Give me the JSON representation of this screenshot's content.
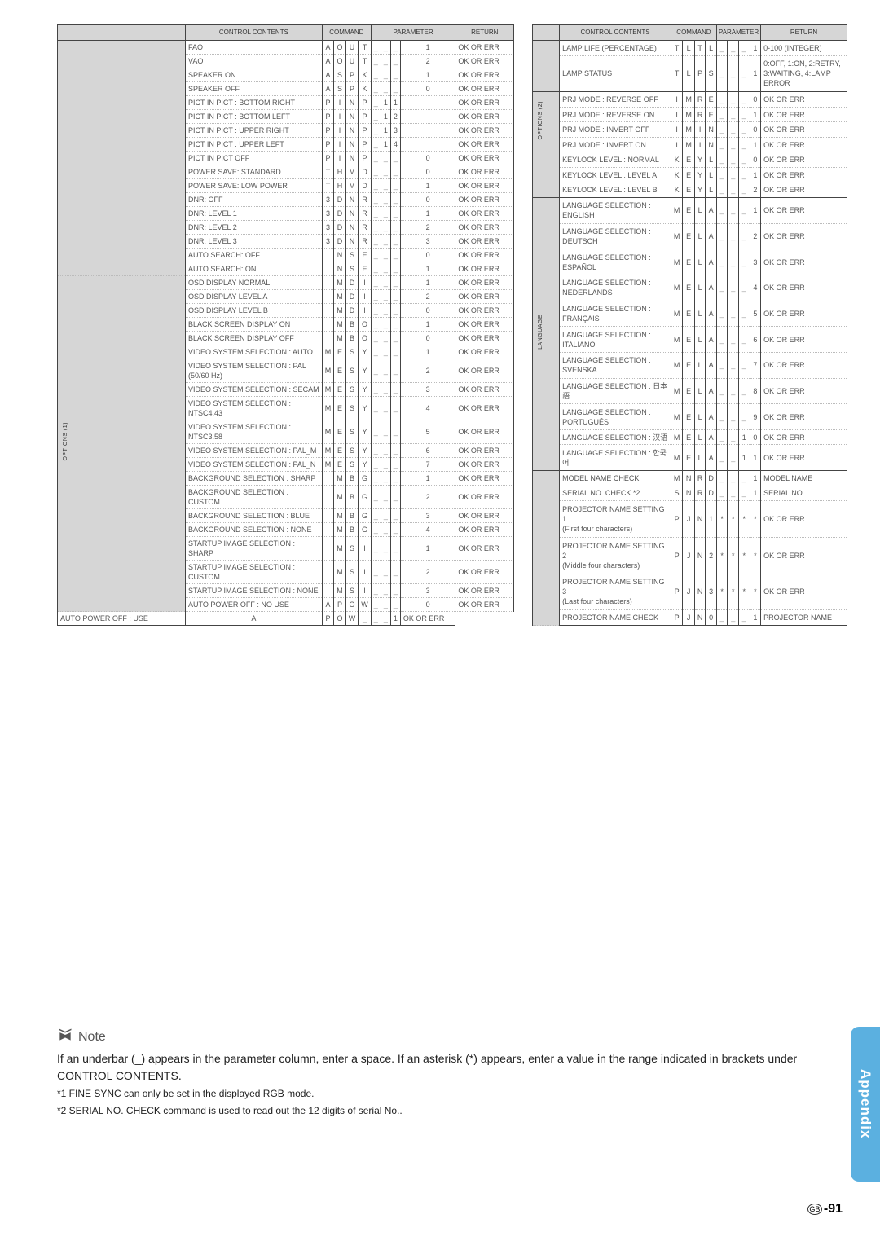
{
  "headers": {
    "control": "CONTROL CONTENTS",
    "command": "COMMAND",
    "parameter": "PARAMETER",
    "return": "RETURN"
  },
  "sidelabels": {
    "options1": "OPTIONS (1)",
    "options2": "OPTIONS (2)",
    "language": "LANGUAGE"
  },
  "left_rows": [
    {
      "n": "FAO",
      "c": [
        "A",
        "O",
        "U",
        "T"
      ],
      "p": [
        "_",
        "_",
        "_",
        "1"
      ],
      "r": "OK OR ERR",
      "section": true
    },
    {
      "n": "VAO",
      "c": [
        "A",
        "O",
        "U",
        "T"
      ],
      "p": [
        "_",
        "_",
        "_",
        "2"
      ],
      "r": "OK OR ERR"
    },
    {
      "n": "SPEAKER ON",
      "c": [
        "A",
        "S",
        "P",
        "K"
      ],
      "p": [
        "_",
        "_",
        "_",
        "1"
      ],
      "r": "OK OR ERR"
    },
    {
      "n": "SPEAKER OFF",
      "c": [
        "A",
        "S",
        "P",
        "K"
      ],
      "p": [
        "_",
        "_",
        "_",
        "0"
      ],
      "r": "OK OR ERR"
    },
    {
      "n": "PICT IN PICT : BOTTOM RIGHT",
      "c": [
        "P",
        "I",
        "N",
        "P"
      ],
      "p": [
        "_",
        "1",
        "1",
        " "
      ],
      "r": "OK OR ERR"
    },
    {
      "n": "PICT IN PICT : BOTTOM LEFT",
      "c": [
        "P",
        "I",
        "N",
        "P"
      ],
      "p": [
        "_",
        "1",
        "2",
        " "
      ],
      "r": "OK OR ERR"
    },
    {
      "n": "PICT IN PICT : UPPER RIGHT",
      "c": [
        "P",
        "I",
        "N",
        "P"
      ],
      "p": [
        "_",
        "1",
        "3",
        " "
      ],
      "r": "OK OR ERR"
    },
    {
      "n": "PICT IN PICT : UPPER LEFT",
      "c": [
        "P",
        "I",
        "N",
        "P"
      ],
      "p": [
        "_",
        "1",
        "4",
        " "
      ],
      "r": "OK OR ERR"
    },
    {
      "n": "PICT IN PICT OFF",
      "c": [
        "P",
        "I",
        "N",
        "P"
      ],
      "p": [
        "_",
        "_",
        "_",
        "0"
      ],
      "r": "OK OR ERR"
    },
    {
      "n": "POWER SAVE: STANDARD",
      "c": [
        "T",
        "H",
        "M",
        "D"
      ],
      "p": [
        "_",
        "_",
        "_",
        "0"
      ],
      "r": "OK OR ERR"
    },
    {
      "n": "POWER SAVE: LOW POWER",
      "c": [
        "T",
        "H",
        "M",
        "D"
      ],
      "p": [
        "_",
        "_",
        "_",
        "1"
      ],
      "r": "OK OR ERR"
    },
    {
      "n": "DNR: OFF",
      "c": [
        "3",
        "D",
        "N",
        "R"
      ],
      "p": [
        "_",
        "_",
        "_",
        "0"
      ],
      "r": "OK OR ERR"
    },
    {
      "n": "DNR: LEVEL 1",
      "c": [
        "3",
        "D",
        "N",
        "R"
      ],
      "p": [
        "_",
        "_",
        "_",
        "1"
      ],
      "r": "OK OR ERR"
    },
    {
      "n": "DNR: LEVEL 2",
      "c": [
        "3",
        "D",
        "N",
        "R"
      ],
      "p": [
        "_",
        "_",
        "_",
        "2"
      ],
      "r": "OK OR ERR"
    },
    {
      "n": "DNR: LEVEL 3",
      "c": [
        "3",
        "D",
        "N",
        "R"
      ],
      "p": [
        "_",
        "_",
        "_",
        "3"
      ],
      "r": "OK OR ERR"
    },
    {
      "n": "AUTO SEARCH: OFF",
      "c": [
        "I",
        "N",
        "S",
        "E"
      ],
      "p": [
        "_",
        "_",
        "_",
        "0"
      ],
      "r": "OK OR ERR"
    },
    {
      "n": "AUTO SEARCH: ON",
      "c": [
        "I",
        "N",
        "S",
        "E"
      ],
      "p": [
        "_",
        "_",
        "_",
        "1"
      ],
      "r": "OK OR ERR"
    },
    {
      "n": "OSD DISPLAY NORMAL",
      "c": [
        "I",
        "M",
        "D",
        "I"
      ],
      "p": [
        "_",
        "_",
        "_",
        "1"
      ],
      "r": "OK OR ERR",
      "side": "options1",
      "span": 20
    },
    {
      "n": "OSD DISPLAY LEVEL A",
      "c": [
        "I",
        "M",
        "D",
        "I"
      ],
      "p": [
        "_",
        "_",
        "_",
        "2"
      ],
      "r": "OK OR ERR"
    },
    {
      "n": "OSD DISPLAY LEVEL B",
      "c": [
        "I",
        "M",
        "D",
        "I"
      ],
      "p": [
        "_",
        "_",
        "_",
        "0"
      ],
      "r": "OK OR ERR"
    },
    {
      "n": "BLACK SCREEN DISPLAY ON",
      "c": [
        "I",
        "M",
        "B",
        "O"
      ],
      "p": [
        "_",
        "_",
        "_",
        "1"
      ],
      "r": "OK OR ERR"
    },
    {
      "n": "BLACK SCREEN DISPLAY OFF",
      "c": [
        "I",
        "M",
        "B",
        "O"
      ],
      "p": [
        "_",
        "_",
        "_",
        "0"
      ],
      "r": "OK OR ERR"
    },
    {
      "n": "VIDEO SYSTEM SELECTION : AUTO",
      "c": [
        "M",
        "E",
        "S",
        "Y"
      ],
      "p": [
        "_",
        "_",
        "_",
        "1"
      ],
      "r": "OK OR ERR"
    },
    {
      "n": "VIDEO SYSTEM SELECTION : PAL (50/60 Hz)",
      "c": [
        "M",
        "E",
        "S",
        "Y"
      ],
      "p": [
        "_",
        "_",
        "_",
        "2"
      ],
      "r": "OK OR ERR"
    },
    {
      "n": "VIDEO SYSTEM SELECTION : SECAM",
      "c": [
        "M",
        "E",
        "S",
        "Y"
      ],
      "p": [
        "_",
        "_",
        "_",
        "3"
      ],
      "r": "OK OR ERR"
    },
    {
      "n": "VIDEO SYSTEM SELECTION : NTSC4.43",
      "c": [
        "M",
        "E",
        "S",
        "Y"
      ],
      "p": [
        "_",
        "_",
        "_",
        "4"
      ],
      "r": "OK OR ERR"
    },
    {
      "n": "VIDEO SYSTEM SELECTION : NTSC3.58",
      "c": [
        "M",
        "E",
        "S",
        "Y"
      ],
      "p": [
        "_",
        "_",
        "_",
        "5"
      ],
      "r": "OK OR ERR"
    },
    {
      "n": "VIDEO SYSTEM SELECTION : PAL_M",
      "c": [
        "M",
        "E",
        "S",
        "Y"
      ],
      "p": [
        "_",
        "_",
        "_",
        "6"
      ],
      "r": "OK OR ERR"
    },
    {
      "n": "VIDEO SYSTEM SELECTION : PAL_N",
      "c": [
        "M",
        "E",
        "S",
        "Y"
      ],
      "p": [
        "_",
        "_",
        "_",
        "7"
      ],
      "r": "OK OR ERR"
    },
    {
      "n": "BACKGROUND SELECTION : SHARP",
      "c": [
        "I",
        "M",
        "B",
        "G"
      ],
      "p": [
        "_",
        "_",
        "_",
        "1"
      ],
      "r": "OK OR ERR"
    },
    {
      "n": "BACKGROUND SELECTION : CUSTOM",
      "c": [
        "I",
        "M",
        "B",
        "G"
      ],
      "p": [
        "_",
        "_",
        "_",
        "2"
      ],
      "r": "OK OR ERR"
    },
    {
      "n": "BACKGROUND SELECTION : BLUE",
      "c": [
        "I",
        "M",
        "B",
        "G"
      ],
      "p": [
        "_",
        "_",
        "_",
        "3"
      ],
      "r": "OK OR ERR"
    },
    {
      "n": "BACKGROUND SELECTION : NONE",
      "c": [
        "I",
        "M",
        "B",
        "G"
      ],
      "p": [
        "_",
        "_",
        "_",
        "4"
      ],
      "r": "OK OR ERR"
    },
    {
      "n": "STARTUP IMAGE SELECTION : SHARP",
      "c": [
        "I",
        "M",
        "S",
        "I"
      ],
      "p": [
        "_",
        "_",
        "_",
        "1"
      ],
      "r": "OK OR ERR"
    },
    {
      "n": "STARTUP IMAGE SELECTION : CUSTOM",
      "c": [
        "I",
        "M",
        "S",
        "I"
      ],
      "p": [
        "_",
        "_",
        "_",
        "2"
      ],
      "r": "OK OR ERR"
    },
    {
      "n": "STARTUP IMAGE SELECTION : NONE",
      "c": [
        "I",
        "M",
        "S",
        "I"
      ],
      "p": [
        "_",
        "_",
        "_",
        "3"
      ],
      "r": "OK OR ERR"
    },
    {
      "n": "AUTO POWER OFF : NO USE",
      "c": [
        "A",
        "P",
        "O",
        "W"
      ],
      "p": [
        "_",
        "_",
        "_",
        "0"
      ],
      "r": "OK OR ERR"
    },
    {
      "n": "AUTO POWER OFF : USE",
      "c": [
        "A",
        "P",
        "O",
        "W"
      ],
      "p": [
        "_",
        "_",
        "_",
        "1"
      ],
      "r": "OK OR ERR"
    }
  ],
  "right_rows": [
    {
      "n": "LAMP LIFE (PERCENTAGE)",
      "c": [
        "T",
        "L",
        "T",
        "L"
      ],
      "p": [
        "_",
        "_",
        "_",
        "1"
      ],
      "r": "0-100 (INTEGER)",
      "section": true
    },
    {
      "n": "LAMP STATUS",
      "c": [
        "T",
        "L",
        "P",
        "S"
      ],
      "p": [
        "_",
        "_",
        "_",
        "1"
      ],
      "r": "0:OFF, 1:ON, 2:RETRY, 3:WAITING, 4:LAMP ERROR",
      "tall": true
    },
    {
      "n": "PRJ MODE : REVERSE OFF",
      "c": [
        "I",
        "M",
        "R",
        "E"
      ],
      "p": [
        "_",
        "_",
        "_",
        "0"
      ],
      "r": "OK OR ERR",
      "side": "options2",
      "span": 4,
      "section": true
    },
    {
      "n": "PRJ MODE : REVERSE ON",
      "c": [
        "I",
        "M",
        "R",
        "E"
      ],
      "p": [
        "_",
        "_",
        "_",
        "1"
      ],
      "r": "OK OR ERR"
    },
    {
      "n": "PRJ MODE : INVERT OFF",
      "c": [
        "I",
        "M",
        "I",
        "N"
      ],
      "p": [
        "_",
        "_",
        "_",
        "0"
      ],
      "r": "OK OR ERR"
    },
    {
      "n": "PRJ MODE : INVERT ON",
      "c": [
        "I",
        "M",
        "I",
        "N"
      ],
      "p": [
        "_",
        "_",
        "_",
        "1"
      ],
      "r": "OK OR ERR"
    },
    {
      "n": "KEYLOCK LEVEL : NORMAL",
      "c": [
        "K",
        "E",
        "Y",
        "L"
      ],
      "p": [
        "_",
        "_",
        "_",
        "0"
      ],
      "r": "OK OR ERR",
      "section": true
    },
    {
      "n": "KEYLOCK LEVEL : LEVEL A",
      "c": [
        "K",
        "E",
        "Y",
        "L"
      ],
      "p": [
        "_",
        "_",
        "_",
        "1"
      ],
      "r": "OK OR ERR"
    },
    {
      "n": "KEYLOCK LEVEL : LEVEL B",
      "c": [
        "K",
        "E",
        "Y",
        "L"
      ],
      "p": [
        "_",
        "_",
        "_",
        "2"
      ],
      "r": "OK OR ERR"
    },
    {
      "n": "LANGUAGE SELECTION : ENGLISH",
      "c": [
        "M",
        "E",
        "L",
        "A"
      ],
      "p": [
        "_",
        "_",
        "_",
        "1"
      ],
      "r": "OK OR ERR",
      "side": "language",
      "span": 11,
      "section": true
    },
    {
      "n": "LANGUAGE SELECTION : DEUTSCH",
      "c": [
        "M",
        "E",
        "L",
        "A"
      ],
      "p": [
        "_",
        "_",
        "_",
        "2"
      ],
      "r": "OK OR ERR"
    },
    {
      "n": "LANGUAGE SELECTION : ESPAÑOL",
      "c": [
        "M",
        "E",
        "L",
        "A"
      ],
      "p": [
        "_",
        "_",
        "_",
        "3"
      ],
      "r": "OK OR ERR"
    },
    {
      "n": "LANGUAGE SELECTION : NEDERLANDS",
      "c": [
        "M",
        "E",
        "L",
        "A"
      ],
      "p": [
        "_",
        "_",
        "_",
        "4"
      ],
      "r": "OK OR ERR"
    },
    {
      "n": "LANGUAGE SELECTION : FRANÇAIS",
      "c": [
        "M",
        "E",
        "L",
        "A"
      ],
      "p": [
        "_",
        "_",
        "_",
        "5"
      ],
      "r": "OK OR ERR"
    },
    {
      "n": "LANGUAGE SELECTION : ITALIANO",
      "c": [
        "M",
        "E",
        "L",
        "A"
      ],
      "p": [
        "_",
        "_",
        "_",
        "6"
      ],
      "r": "OK OR ERR"
    },
    {
      "n": "LANGUAGE SELECTION : SVENSKA",
      "c": [
        "M",
        "E",
        "L",
        "A"
      ],
      "p": [
        "_",
        "_",
        "_",
        "7"
      ],
      "r": "OK OR ERR"
    },
    {
      "n": "LANGUAGE SELECTION : 日本語",
      "c": [
        "M",
        "E",
        "L",
        "A"
      ],
      "p": [
        "_",
        "_",
        "_",
        "8"
      ],
      "r": "OK OR ERR"
    },
    {
      "n": "LANGUAGE SELECTION : PORTUGUÊS",
      "c": [
        "M",
        "E",
        "L",
        "A"
      ],
      "p": [
        "_",
        "_",
        "_",
        "9"
      ],
      "r": "OK OR ERR"
    },
    {
      "n": "LANGUAGE SELECTION : 汉语",
      "c": [
        "M",
        "E",
        "L",
        "A"
      ],
      "p": [
        "_",
        "_",
        "1",
        "0"
      ],
      "r": "OK OR ERR"
    },
    {
      "n": "LANGUAGE SELECTION : 한국어",
      "c": [
        "M",
        "E",
        "L",
        "A"
      ],
      "p": [
        "_",
        "_",
        "1",
        "1"
      ],
      "r": "OK OR ERR"
    },
    {
      "n": "MODEL NAME CHECK",
      "c": [
        "M",
        "N",
        "R",
        "D"
      ],
      "p": [
        "_",
        "_",
        "_",
        "1"
      ],
      "r": "MODEL NAME",
      "section": true
    },
    {
      "n": "SERIAL NO. CHECK *2",
      "c": [
        "S",
        "N",
        "R",
        "D"
      ],
      "p": [
        "_",
        "_",
        "_",
        "1"
      ],
      "r": "SERIAL NO."
    },
    {
      "n": "PROJECTOR NAME SETTING 1\n(First four characters)",
      "c": [
        "P",
        "J",
        "N",
        "1"
      ],
      "p": [
        "*",
        "*",
        "*",
        "*"
      ],
      "r": "OK OR ERR",
      "tall": true
    },
    {
      "n": "PROJECTOR NAME SETTING 2\n(Middle four characters)",
      "c": [
        "P",
        "J",
        "N",
        "2"
      ],
      "p": [
        "*",
        "*",
        "*",
        "*"
      ],
      "r": "OK OR ERR",
      "tall": true
    },
    {
      "n": "PROJECTOR NAME SETTING 3\n(Last four characters)",
      "c": [
        "P",
        "J",
        "N",
        "3"
      ],
      "p": [
        "*",
        "*",
        "*",
        "*"
      ],
      "r": "OK OR ERR",
      "tall": true
    },
    {
      "n": "PROJECTOR NAME CHECK",
      "c": [
        "P",
        "J",
        "N",
        "0"
      ],
      "p": [
        "_",
        "_",
        "_",
        "1"
      ],
      "r": "PROJECTOR NAME"
    }
  ],
  "note": {
    "title": "Note",
    "body": "If an underbar (_)  appears in the parameter column, enter a space. If an asterisk (*) appears, enter a value in the range indicated in brackets under CONTROL CONTENTS.",
    "f1": "*1 FINE SYNC can only be set in the displayed RGB mode.",
    "f2": "*2 SERIAL NO. CHECK command is used to read out the 12 digits of serial No.."
  },
  "side_tab": "Appendix",
  "page": {
    "code": "GB",
    "num": "-91"
  },
  "colors": {
    "header_bg": "#d6d6d6",
    "border": "#444444",
    "dotted": "#bbbbbb",
    "text": "#555555",
    "tab": "#5bb0e0"
  }
}
